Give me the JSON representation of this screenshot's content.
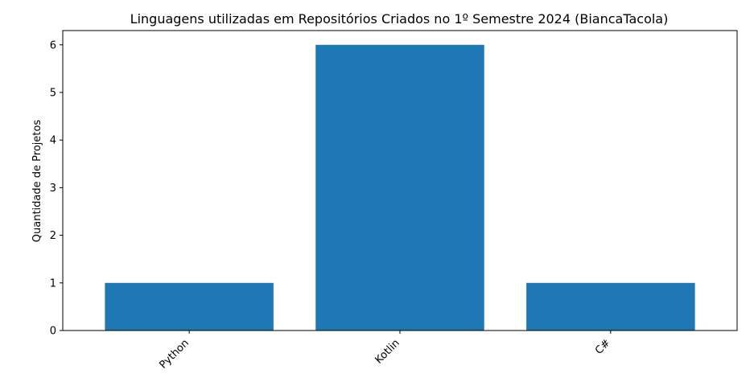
{
  "chart_data": {
    "type": "bar",
    "title": "Linguagens utilizadas em Repositórios Criados no 1º Semestre 2024 (BiancaTacola)",
    "xlabel": "",
    "ylabel": "Quantidade de Projetos",
    "categories": [
      "Python",
      "Kotlin",
      "C#"
    ],
    "values": [
      1,
      6,
      1
    ],
    "ylim": [
      0,
      6.3
    ],
    "yticks": [
      0,
      1,
      2,
      3,
      4,
      5,
      6
    ],
    "grid": false,
    "bar_color": "#1f77b4",
    "x_tick_rotation_deg": 45
  }
}
